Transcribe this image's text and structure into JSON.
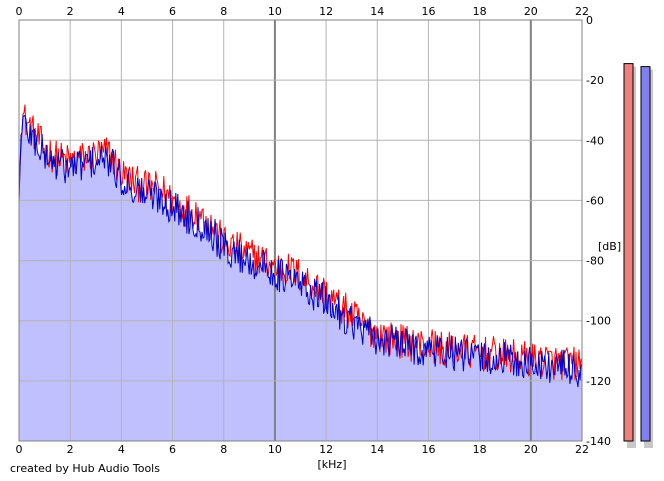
{
  "footer_text": "created by Hub Audio Tools",
  "chart_data": {
    "type": "area",
    "title": "",
    "xlabel": "[kHz]",
    "ylabel": "[dB]",
    "xlim": [
      0,
      22
    ],
    "ylim": [
      -140,
      0
    ],
    "x_ticks": [
      0,
      2,
      4,
      6,
      8,
      10,
      12,
      14,
      16,
      18,
      20,
      22
    ],
    "y_ticks": [
      0,
      -20,
      -40,
      -60,
      -80,
      -100,
      -120,
      -140
    ],
    "grid": true,
    "legend": "none",
    "colors": {
      "left_channel": "#ff0000",
      "right_channel": "#0000c8",
      "fill": "#c0c0ff",
      "grid": "#b4b4b4",
      "grid_major": "#808080",
      "left_meter": "#f08080",
      "right_meter": "#8080f0"
    },
    "series": [
      {
        "channel": "left",
        "color": "#ff0000",
        "x": [
          0,
          0.1,
          0.3,
          0.6,
          1.0,
          1.5,
          2.0,
          2.5,
          3.0,
          3.5,
          4.0,
          4.5,
          5.0,
          5.5,
          6.0,
          6.5,
          7.0,
          7.5,
          8.0,
          8.5,
          9.0,
          9.5,
          10.0,
          10.5,
          11.0,
          11.5,
          12.0,
          12.5,
          13.0,
          13.5,
          14.0,
          14.5,
          15.0,
          15.5,
          16.0,
          16.5,
          17.0,
          17.5,
          18.0,
          18.5,
          19.0,
          19.5,
          20.0,
          20.5,
          21.0,
          21.5,
          22.0
        ],
        "values": [
          -60,
          -31,
          -34,
          -38,
          -43,
          -46,
          -47,
          -46,
          -45,
          -44,
          -51,
          -54,
          -56,
          -56,
          -60,
          -63,
          -64,
          -68,
          -74,
          -76,
          -78,
          -80,
          -82,
          -83,
          -85,
          -88,
          -91,
          -95,
          -98,
          -102,
          -104,
          -106,
          -107,
          -108,
          -108,
          -109,
          -110,
          -110,
          -111,
          -111,
          -112,
          -112,
          -113,
          -113,
          -114,
          -114,
          -115
        ]
      },
      {
        "channel": "right",
        "color": "#0000c8",
        "x": [
          0,
          0.1,
          0.3,
          0.6,
          1.0,
          1.5,
          2.0,
          2.5,
          3.0,
          3.5,
          4.0,
          4.5,
          5.0,
          5.5,
          6.0,
          6.5,
          7.0,
          7.5,
          8.0,
          8.5,
          9.0,
          9.5,
          10.0,
          10.5,
          11.0,
          11.5,
          12.0,
          12.5,
          13.0,
          13.5,
          14.0,
          14.5,
          15.0,
          15.5,
          16.0,
          16.5,
          17.0,
          17.5,
          18.0,
          18.5,
          19.0,
          19.5,
          20.0,
          20.5,
          21.0,
          21.5,
          22.0
        ],
        "values": [
          -60,
          -33,
          -36,
          -40,
          -45,
          -48,
          -49,
          -48,
          -47,
          -47,
          -53,
          -56,
          -58,
          -59,
          -62,
          -65,
          -67,
          -70,
          -76,
          -78,
          -80,
          -82,
          -84,
          -86,
          -88,
          -91,
          -94,
          -97,
          -100,
          -104,
          -106,
          -107,
          -108,
          -109,
          -110,
          -110,
          -111,
          -112,
          -112,
          -113,
          -113,
          -114,
          -114,
          -115,
          -115,
          -116,
          -117
        ]
      }
    ],
    "meters": {
      "left_db": -14.5,
      "right_db": -15.5
    }
  }
}
